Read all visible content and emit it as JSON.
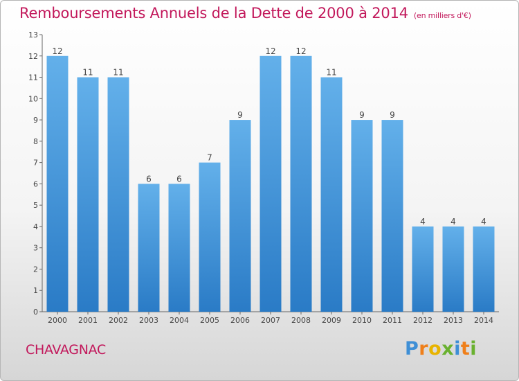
{
  "title": "Remboursements Annuels de la Dette de 2000 à 2014",
  "subtitle": "(en milliers d'€)",
  "city": "CHAVAGNAC",
  "logo_text": "Proxiti",
  "colors": {
    "title": "#c2185b",
    "bar_light": "#63b0ea",
    "bar_dark": "#2a7bc6",
    "logo": [
      "#3e8fd6",
      "#ef7f1a",
      "#e8b400",
      "#69b12f",
      "#3e8fd6",
      "#ef7f1a",
      "#69b12f"
    ]
  },
  "chart_data": {
    "type": "bar",
    "categories": [
      "2000",
      "2001",
      "2002",
      "2003",
      "2004",
      "2005",
      "2006",
      "2007",
      "2008",
      "2009",
      "2010",
      "2011",
      "2012",
      "2013",
      "2014"
    ],
    "values": [
      12,
      11,
      11,
      6,
      6,
      7,
      9,
      12,
      12,
      11,
      9,
      9,
      4,
      4,
      4
    ],
    "ylim": [
      0,
      13
    ],
    "yticks": [
      0,
      1,
      2,
      3,
      4,
      5,
      6,
      7,
      8,
      9,
      10,
      11,
      12,
      13
    ],
    "grid": false,
    "xlabel": "",
    "ylabel": ""
  }
}
